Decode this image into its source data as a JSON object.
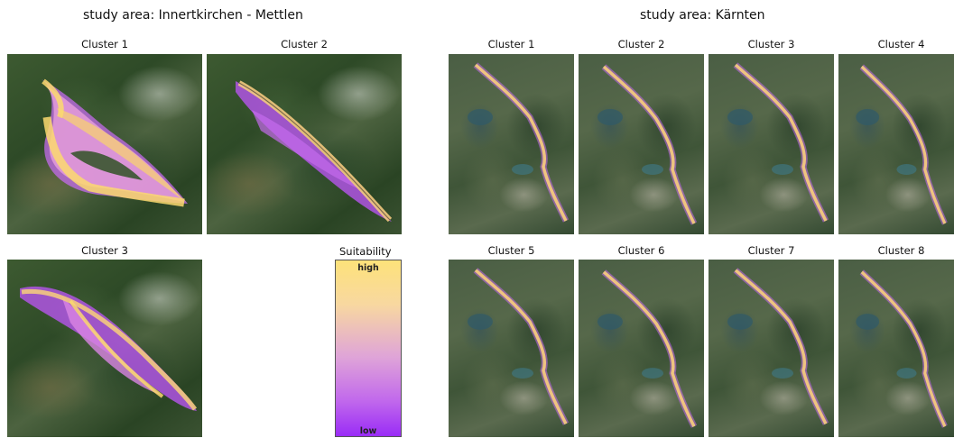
{
  "colors": {
    "high": "#fde27a",
    "low": "#9a2cf6",
    "mid": "#df8ee2"
  },
  "left": {
    "title": "study area: Innertkirchen - Mettlen",
    "clusters": [
      {
        "label": "Cluster 1"
      },
      {
        "label": "Cluster 2"
      },
      {
        "label": "Cluster 3"
      }
    ]
  },
  "right": {
    "title": "study area: Kärnten",
    "clusters": [
      {
        "label": "Cluster 1"
      },
      {
        "label": "Cluster 2"
      },
      {
        "label": "Cluster 3"
      },
      {
        "label": "Cluster 4"
      },
      {
        "label": "Cluster 5"
      },
      {
        "label": "Cluster 6"
      },
      {
        "label": "Cluster 7"
      },
      {
        "label": "Cluster 8"
      }
    ]
  },
  "legend": {
    "title": "Suitability",
    "high": "high",
    "low": "low"
  }
}
